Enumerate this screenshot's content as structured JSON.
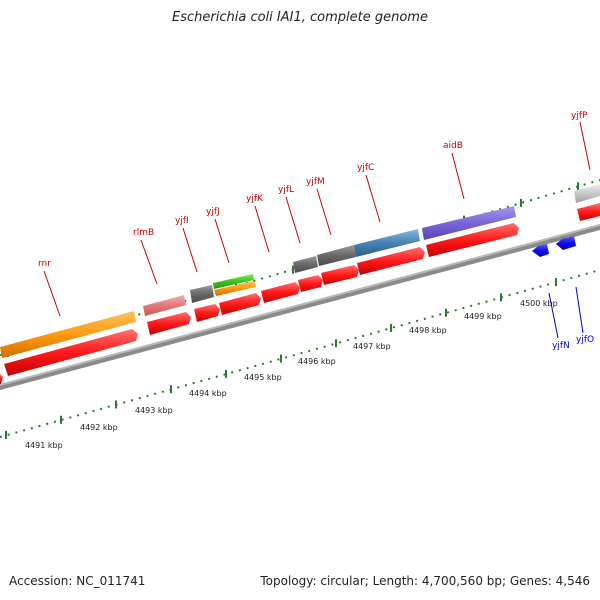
{
  "title": "Escherichia coli IAI1, complete genome",
  "accession": "Accession: NC_011741",
  "summary": "Topology: circular; Length: 4,700,560 bp; Genes: 4,546",
  "colors": {
    "forward_label": "#cc0000",
    "reverse_label": "#0000cc",
    "backbone": "#888888",
    "tick": "#2b7a2b"
  },
  "features": {
    "forward_cds": [
      "rnr",
      "rlmB",
      "yjfI",
      "yjfJ",
      "yjfK",
      "yjfL",
      "yjfM",
      "yjfC",
      "aidB",
      "yjfP"
    ],
    "reverse_cds": [
      "yjfN",
      "yjfO"
    ]
  },
  "gene_labels": [
    {
      "name": "rnr",
      "strand": "forward"
    },
    {
      "name": "rlmB",
      "strand": "forward"
    },
    {
      "name": "yjfI",
      "strand": "forward"
    },
    {
      "name": "yjfJ",
      "strand": "forward"
    },
    {
      "name": "yjfK",
      "strand": "forward"
    },
    {
      "name": "yjfL",
      "strand": "forward"
    },
    {
      "name": "yjfM",
      "strand": "forward"
    },
    {
      "name": "yjfC",
      "strand": "forward"
    },
    {
      "name": "aidB",
      "strand": "forward"
    },
    {
      "name": "yjfP",
      "strand": "forward"
    },
    {
      "name": "yjfN",
      "strand": "reverse"
    },
    {
      "name": "yjfO",
      "strand": "reverse"
    }
  ],
  "scale_labels": [
    "4491 kbp",
    "4492 kbp",
    "4493 kbp",
    "4494 kbp",
    "4495 kbp",
    "4496 kbp",
    "4497 kbp",
    "4498 kbp",
    "4499 kbp",
    "4500 kbp"
  ]
}
